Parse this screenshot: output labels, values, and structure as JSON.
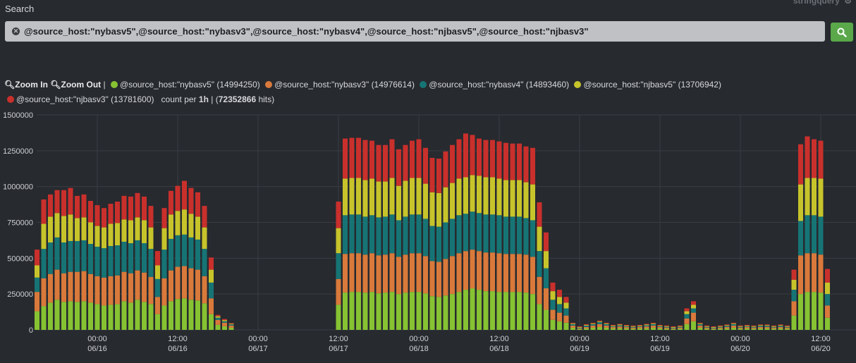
{
  "search": {
    "label": "Search",
    "query": "@source_host:\"nybasv5\",@source_host:\"nybasv3\",@source_host:\"nybasv4\",@source_host:\"njbasv5\",@source_host:\"njbasv3\"",
    "mode_label": "stringquery"
  },
  "legend": {
    "zoom_in": "Zoom In",
    "zoom_out": "Zoom Out",
    "separator": "|",
    "items": [
      {
        "label": "@source_host:\"nybasv5\" (14994250)",
        "color": "#86c232"
      },
      {
        "label": "@source_host:\"nybasv3\" (14976614)",
        "color": "#d9793b"
      },
      {
        "label": "@source_host:\"nybasv4\" (14893460)",
        "color": "#167475"
      },
      {
        "label": "@source_host:\"njbasv5\" (13706942)",
        "color": "#c7c42b"
      },
      {
        "label": "@source_host:\"njbasv3\" (13781600)",
        "color": "#c9302c"
      }
    ],
    "count_prefix": "count per",
    "interval": "1h",
    "hits_total": "72352866",
    "hits_suffix": "hits"
  },
  "colors": {
    "nybasv5": "#86c232",
    "nybasv3": "#d9793b",
    "nybasv4": "#167475",
    "njbasv5": "#c7c42b",
    "njbasv3": "#c9302c"
  },
  "chart_data": {
    "type": "bar",
    "stacked": true,
    "interval": "1h",
    "ylim": [
      0,
      1500000
    ],
    "yticks": [
      "0",
      "250000",
      "500000",
      "750000",
      "1000000",
      "1250000",
      "1500000"
    ],
    "xticks": [
      {
        "time": "00:00",
        "date": "06/16"
      },
      {
        "time": "12:00",
        "date": "06/16"
      },
      {
        "time": "00:00",
        "date": "06/17"
      },
      {
        "time": "12:00",
        "date": "06/17"
      },
      {
        "time": "00:00",
        "date": "06/18"
      },
      {
        "time": "12:00",
        "date": "06/18"
      },
      {
        "time": "00:00",
        "date": "06/19"
      },
      {
        "time": "12:00",
        "date": "06/19"
      },
      {
        "time": "00:00",
        "date": "06/20"
      },
      {
        "time": "12:00",
        "date": "06/20"
      }
    ],
    "x_start": "06/15 15:00",
    "grid": true,
    "series": [
      {
        "name": "@source_host:\"nybasv5\"",
        "values": [
          130000,
          165000,
          190000,
          210000,
          195000,
          200000,
          195000,
          200000,
          190000,
          180000,
          170000,
          175000,
          180000,
          200000,
          190000,
          210000,
          195000,
          180000,
          110000,
          170000,
          200000,
          215000,
          220000,
          210000,
          205000,
          185000,
          110000,
          35000,
          25000,
          15000,
          0,
          0,
          0,
          0,
          0,
          0,
          0,
          0,
          0,
          0,
          0,
          0,
          0,
          0,
          0,
          175000,
          260000,
          265000,
          265000,
          260000,
          265000,
          255000,
          260000,
          265000,
          250000,
          260000,
          265000,
          265000,
          255000,
          235000,
          230000,
          240000,
          250000,
          265000,
          280000,
          290000,
          280000,
          270000,
          270000,
          265000,
          265000,
          265000,
          265000,
          260000,
          250000,
          180000,
          140000,
          70000,
          60000,
          50000,
          15000,
          5000,
          10000,
          15000,
          20000,
          15000,
          10000,
          12000,
          10000,
          8000,
          10000,
          12000,
          15000,
          10000,
          8000,
          5000,
          8000,
          40000,
          60000,
          15000,
          8000,
          5000,
          8000,
          10000,
          15000,
          8000,
          10000,
          8000,
          10000,
          10000,
          8000,
          10000,
          8000,
          100000,
          250000,
          265000,
          265000,
          260000,
          85000
        ]
      },
      {
        "name": "@source_host:\"nybasv3\"",
        "values": [
          135000,
          195000,
          200000,
          210000,
          200000,
          205000,
          210000,
          210000,
          200000,
          195000,
          195000,
          200000,
          200000,
          205000,
          205000,
          205000,
          205000,
          190000,
          120000,
          190000,
          215000,
          225000,
          225000,
          220000,
          215000,
          190000,
          110000,
          35000,
          25000,
          15000,
          0,
          0,
          0,
          0,
          0,
          0,
          0,
          0,
          0,
          0,
          0,
          0,
          0,
          0,
          0,
          180000,
          270000,
          270000,
          270000,
          265000,
          270000,
          265000,
          265000,
          270000,
          260000,
          265000,
          270000,
          270000,
          260000,
          245000,
          245000,
          255000,
          265000,
          270000,
          270000,
          270000,
          270000,
          270000,
          270000,
          270000,
          265000,
          265000,
          265000,
          265000,
          260000,
          190000,
          150000,
          70000,
          60000,
          50000,
          15000,
          5000,
          10000,
          15000,
          20000,
          15000,
          10000,
          12000,
          10000,
          8000,
          10000,
          12000,
          15000,
          10000,
          8000,
          5000,
          8000,
          40000,
          60000,
          15000,
          8000,
          5000,
          8000,
          10000,
          15000,
          8000,
          10000,
          8000,
          10000,
          10000,
          8000,
          10000,
          8000,
          100000,
          270000,
          270000,
          270000,
          265000,
          85000
        ]
      },
      {
        "name": "@source_host:\"nybasv4\"",
        "values": [
          100000,
          205000,
          220000,
          225000,
          215000,
          215000,
          215000,
          215000,
          210000,
          205000,
          205000,
          210000,
          210000,
          210000,
          210000,
          210000,
          205000,
          195000,
          125000,
          200000,
          220000,
          220000,
          220000,
          215000,
          210000,
          190000,
          110000,
          15000,
          10000,
          8000,
          0,
          0,
          0,
          0,
          0,
          0,
          0,
          0,
          0,
          0,
          0,
          0,
          0,
          0,
          0,
          180000,
          270000,
          270000,
          270000,
          265000,
          265000,
          265000,
          265000,
          270000,
          255000,
          265000,
          270000,
          270000,
          260000,
          245000,
          245000,
          255000,
          260000,
          265000,
          260000,
          265000,
          265000,
          265000,
          265000,
          265000,
          260000,
          260000,
          260000,
          255000,
          255000,
          180000,
          140000,
          70000,
          60000,
          50000,
          10000,
          5000,
          10000,
          10000,
          15000,
          10000,
          5000,
          8000,
          5000,
          5000,
          5000,
          8000,
          10000,
          5000,
          5000,
          5000,
          5000,
          30000,
          30000,
          10000,
          5000,
          5000,
          5000,
          8000,
          10000,
          5000,
          5000,
          5000,
          8000,
          8000,
          5000,
          8000,
          5000,
          80000,
          240000,
          265000,
          265000,
          265000,
          80000
        ]
      },
      {
        "name": "@source_host:\"njbasv5\"",
        "values": [
          85000,
          175000,
          180000,
          170000,
          185000,
          185000,
          160000,
          160000,
          150000,
          145000,
          145000,
          155000,
          155000,
          155000,
          160000,
          160000,
          160000,
          150000,
          95000,
          150000,
          170000,
          170000,
          175000,
          165000,
          160000,
          150000,
          90000,
          10000,
          8000,
          5000,
          0,
          0,
          0,
          0,
          0,
          0,
          0,
          0,
          0,
          0,
          0,
          0,
          0,
          0,
          0,
          175000,
          255000,
          255000,
          255000,
          255000,
          255000,
          250000,
          245000,
          255000,
          240000,
          250000,
          255000,
          255000,
          245000,
          235000,
          235000,
          245000,
          250000,
          255000,
          255000,
          255000,
          260000,
          260000,
          260000,
          255000,
          255000,
          255000,
          255000,
          250000,
          250000,
          170000,
          120000,
          60000,
          50000,
          40000,
          5000,
          5000,
          5000,
          5000,
          5000,
          5000,
          5000,
          5000,
          5000,
          5000,
          5000,
          5000,
          5000,
          5000,
          5000,
          5000,
          5000,
          20000,
          25000,
          5000,
          5000,
          5000,
          5000,
          5000,
          5000,
          5000,
          5000,
          5000,
          5000,
          5000,
          5000,
          5000,
          5000,
          70000,
          255000,
          260000,
          260000,
          265000,
          80000
        ]
      },
      {
        "name": "@source_host:\"njbasv3\"",
        "values": [
          110000,
          170000,
          155000,
          160000,
          180000,
          185000,
          155000,
          160000,
          150000,
          145000,
          135000,
          140000,
          150000,
          165000,
          165000,
          170000,
          165000,
          150000,
          100000,
          140000,
          165000,
          175000,
          200000,
          180000,
          170000,
          150000,
          85000,
          10000,
          8000,
          5000,
          0,
          0,
          0,
          0,
          0,
          0,
          0,
          0,
          0,
          0,
          0,
          0,
          0,
          0,
          0,
          185000,
          280000,
          280000,
          280000,
          280000,
          265000,
          255000,
          255000,
          270000,
          255000,
          250000,
          260000,
          270000,
          250000,
          240000,
          240000,
          250000,
          265000,
          275000,
          305000,
          280000,
          260000,
          260000,
          260000,
          260000,
          260000,
          255000,
          255000,
          250000,
          255000,
          170000,
          130000,
          60000,
          50000,
          40000,
          5000,
          5000,
          5000,
          5000,
          5000,
          5000,
          5000,
          5000,
          5000,
          5000,
          5000,
          5000,
          5000,
          5000,
          5000,
          5000,
          5000,
          20000,
          25000,
          5000,
          5000,
          5000,
          5000,
          5000,
          5000,
          5000,
          5000,
          5000,
          5000,
          5000,
          5000,
          5000,
          5000,
          70000,
          280000,
          290000,
          270000,
          265000,
          95000
        ]
      }
    ]
  }
}
